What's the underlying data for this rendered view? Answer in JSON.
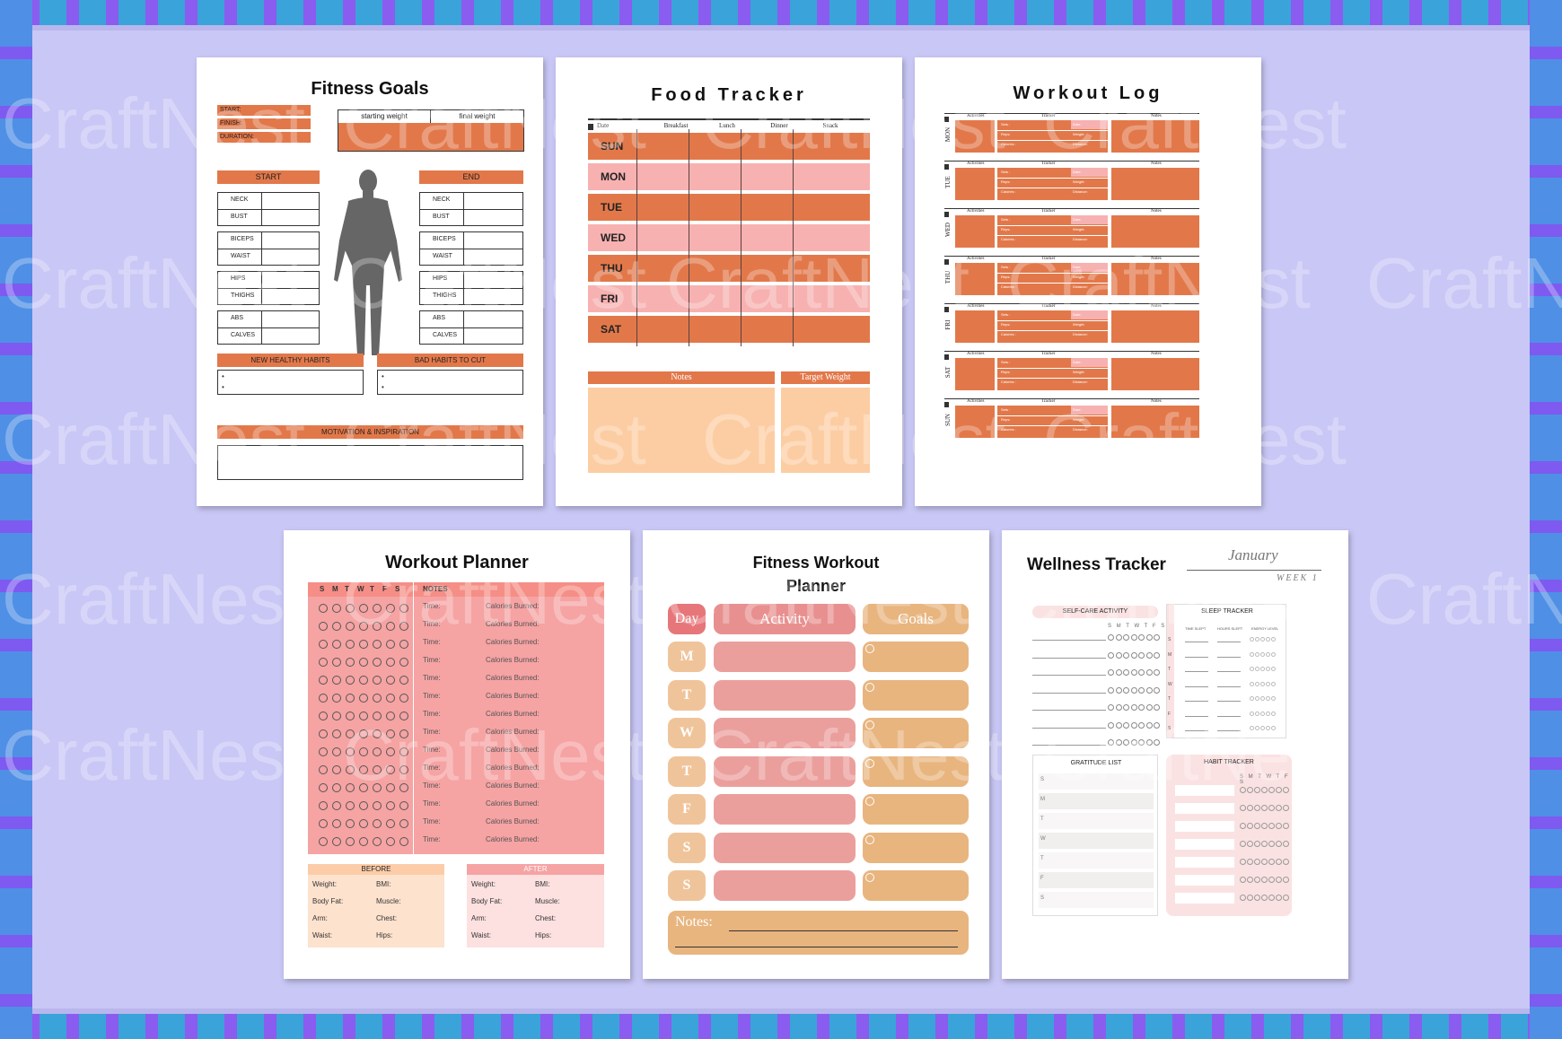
{
  "watermark": "CraftNest",
  "colors": {
    "orange": "#e2784a",
    "pink": "#f7b1b0",
    "peach": "#fccda3",
    "tan": "#e8b57f",
    "background": "#c9c7f5"
  },
  "fitness_goals": {
    "title": "Fitness Goals",
    "meta": [
      "START:",
      "FINISH:",
      "DURATION:"
    ],
    "weight_headers": [
      "starting weight",
      "final weight"
    ],
    "start_label": "START",
    "end_label": "END",
    "measures": [
      "NECK",
      "BUST",
      "BICEPS",
      "WAIST",
      "HIPS",
      "THIGHS",
      "ABS",
      "CALVES"
    ],
    "habits_new": "NEW HEALTHY HABITS",
    "habits_bad": "BAD HABITS TO CUT",
    "motivation": "MOTIVATION & INSPIRATION",
    "bullet": "•"
  },
  "food_tracker": {
    "title": "Food Tracker",
    "columns": [
      "Date",
      "Breakfast",
      "Lunch",
      "Dinner",
      "Snack"
    ],
    "days": [
      "SUN",
      "MON",
      "TUE",
      "WED",
      "THU",
      "FRI",
      "SAT"
    ],
    "notes": "Notes",
    "target": "Target Weight"
  },
  "workout_log": {
    "title": "Workout Log",
    "days": [
      "MON",
      "TUE",
      "WED",
      "THU",
      "FRI",
      "SAT",
      "SUN"
    ],
    "headers": [
      "Activities",
      "Tracker",
      "Notes"
    ],
    "tracker_fields": [
      "Sets :",
      "Date:",
      "Reps:",
      "Weight:",
      "Calories :",
      "Distance:"
    ]
  },
  "workout_planner": {
    "title": "Workout Planner",
    "days": [
      "S",
      "M",
      "T",
      "W",
      "T",
      "F",
      "S"
    ],
    "notes": "NOTES",
    "time": "Time:",
    "calories": "Calories Burned:",
    "rows": 14,
    "before": "BEFORE",
    "after": "AFTER",
    "stats_left": [
      "Weight:",
      "Body Fat:",
      "Arm:",
      "Waist:"
    ],
    "stats_right": [
      "BMI:",
      "Muscle:",
      "Chest:",
      "Hips:"
    ]
  },
  "fitness_workout_planner": {
    "title_line1": "Fitness Workout",
    "title_line2": "Planner",
    "day": "Day",
    "activity": "Activity",
    "goals": "Goals",
    "days": [
      "M",
      "T",
      "W",
      "T",
      "F",
      "S",
      "S"
    ],
    "notes": "Notes:"
  },
  "wellness_tracker": {
    "title": "Wellness Tracker",
    "month": "January",
    "week": "WEEK 1",
    "self_care": "SELF-CARE ACTIVITY",
    "sleep": "SLEEP TRACKER",
    "week_letters": "S M T W T F S",
    "sleep_cols": [
      "TIME SLEPT",
      "HOURS SLEPT",
      "ENERGY LEVEL"
    ],
    "sleep_days": [
      "S",
      "M",
      "T",
      "W",
      "T",
      "F",
      "S"
    ],
    "gratitude": "GRATITUDE LIST",
    "habit": "HABIT TRACKER",
    "gratitude_days": [
      "S",
      "M",
      "T",
      "W",
      "T",
      "F",
      "S"
    ]
  }
}
